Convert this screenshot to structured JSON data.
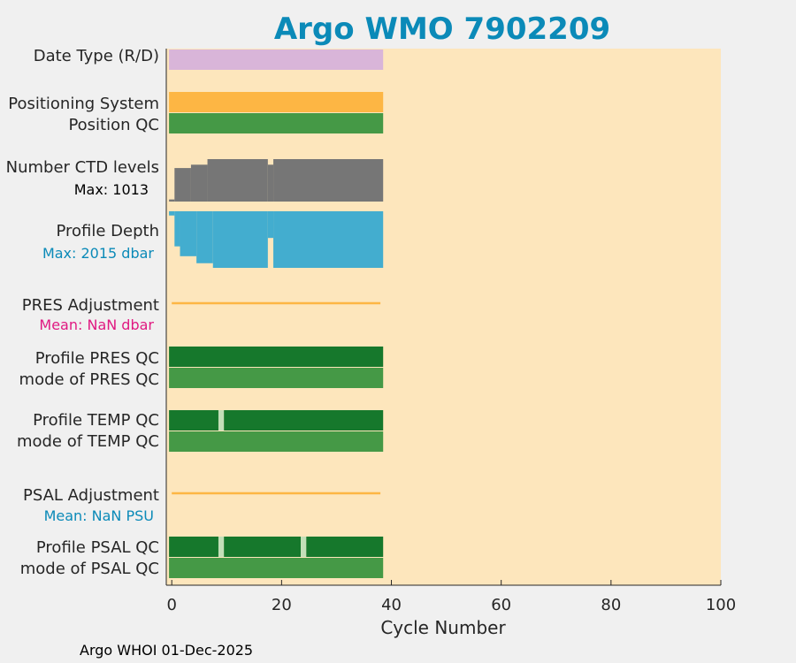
{
  "title": "Argo WMO 7902209",
  "footer": "Argo WHOI 01-Dec-2025",
  "colors": {
    "background": "#f0f0f0",
    "plot_bg": "#fde6bc",
    "title": "#0b8ab8",
    "date_type": "#d9b5d9",
    "positioning": "#fdb644",
    "qc_light_green": "#459946",
    "qc_dark_green": "#16782c",
    "qc_pale": "#c3dfb8",
    "ctd": "#767676",
    "depth": "#43adcf",
    "adjustment_line": "#fdb644",
    "pres_mean_text": "#e01a82",
    "psal_mean_text": "#0b8ab8",
    "max_ctd_text": "#000000",
    "depth_max_text": "#0b8ab8"
  },
  "chart_data": {
    "type": "bar",
    "title": "Argo WMO 7902209",
    "xlabel": "Cycle Number",
    "xlim": [
      -1,
      100
    ],
    "xticks": [
      0,
      20,
      40,
      60,
      80,
      100
    ],
    "xtick_labels": [
      "0",
      "20",
      "40",
      "60",
      "80",
      "100"
    ],
    "cycle_range": [
      0,
      38
    ],
    "rows": [
      {
        "key": "date_type",
        "label": "Date Type (R/D)",
        "kind": "band",
        "segments": [
          [
            0,
            38,
            "date_type"
          ]
        ]
      },
      {
        "key": "positioning",
        "label": "Positioning System",
        "kind": "band",
        "segments": [
          [
            0,
            38,
            "positioning"
          ]
        ]
      },
      {
        "key": "position_qc",
        "label": "Position QC",
        "kind": "band",
        "segments": [
          [
            0,
            38,
            "qc_light_green"
          ]
        ]
      },
      {
        "key": "ctd_levels",
        "label": "Number CTD levels",
        "sublabel": "Max: 1013",
        "kind": "levels",
        "max": 1013,
        "steps": [
          [
            0,
            0,
            50
          ],
          [
            1,
            3,
            800
          ],
          [
            4,
            6,
            880
          ],
          [
            7,
            17,
            1013
          ],
          [
            18,
            18,
            880
          ],
          [
            19,
            38,
            1013
          ]
        ]
      },
      {
        "key": "profile_depth",
        "label": "Profile Depth",
        "sublabel": "Max: 2015 dbar",
        "kind": "depth",
        "max": 2015,
        "steps": [
          [
            0,
            0,
            150
          ],
          [
            1,
            1,
            1250
          ],
          [
            2,
            4,
            1600
          ],
          [
            5,
            7,
            1850
          ],
          [
            8,
            17,
            2015
          ],
          [
            18,
            18,
            950
          ],
          [
            19,
            38,
            2015
          ]
        ]
      },
      {
        "key": "pres_adjustment",
        "label": "PRES Adjustment",
        "sublabel": "Mean:  NaN dbar",
        "kind": "line",
        "range": [
          0,
          38
        ]
      },
      {
        "key": "profile_pres_qc",
        "label": "Profile PRES QC",
        "kind": "band",
        "segments": [
          [
            0,
            38,
            "qc_dark_green"
          ]
        ]
      },
      {
        "key": "mode_pres_qc",
        "label": "mode of PRES QC",
        "kind": "band",
        "segments": [
          [
            0,
            38,
            "qc_light_green"
          ]
        ]
      },
      {
        "key": "profile_temp_qc",
        "label": "Profile TEMP QC",
        "kind": "band",
        "segments": [
          [
            0,
            8,
            "qc_dark_green"
          ],
          [
            9,
            9,
            "qc_pale"
          ],
          [
            10,
            38,
            "qc_dark_green"
          ]
        ]
      },
      {
        "key": "mode_temp_qc",
        "label": "mode of TEMP QC",
        "kind": "band",
        "segments": [
          [
            0,
            38,
            "qc_light_green"
          ]
        ]
      },
      {
        "key": "psal_adjustment",
        "label": "PSAL Adjustment",
        "sublabel": "Mean:  NaN PSU",
        "kind": "line",
        "range": [
          0,
          38
        ]
      },
      {
        "key": "profile_psal_qc",
        "label": "Profile PSAL QC",
        "kind": "band",
        "segments": [
          [
            0,
            8,
            "qc_dark_green"
          ],
          [
            9,
            9,
            "qc_pale"
          ],
          [
            10,
            23,
            "qc_dark_green"
          ],
          [
            24,
            24,
            "qc_pale"
          ],
          [
            25,
            38,
            "qc_dark_green"
          ]
        ]
      },
      {
        "key": "mode_psal_qc",
        "label": "mode of PSAL QC",
        "kind": "band",
        "segments": [
          [
            0,
            38,
            "qc_light_green"
          ]
        ]
      }
    ]
  }
}
